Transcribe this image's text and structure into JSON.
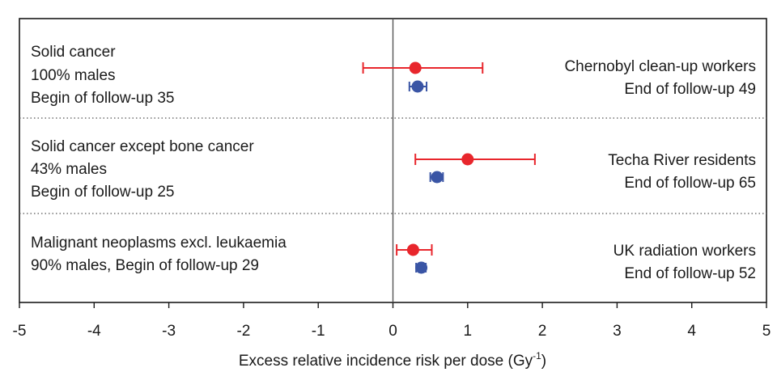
{
  "chart_data": {
    "type": "scatter",
    "xlabel_main": "Excess relative incidence risk per dose (Gy",
    "xlabel_sup": "-1",
    "xlabel_tail": ")",
    "xlim": [
      -5,
      5
    ],
    "xticks": [
      "-5",
      "-4",
      "-3",
      "-2",
      "-1",
      "0",
      "1",
      "2",
      "3",
      "4",
      "5"
    ],
    "grid": false,
    "colors": {
      "red": "#e8262c",
      "blue": "#3a55a5",
      "frame": "#1a1a1a",
      "divider": "#555555"
    },
    "panels": [
      {
        "left_lines": [
          "Solid cancer",
          "100% males",
          "Begin of follow-up 35"
        ],
        "right_lines": [
          "Chernobyl clean-up workers",
          "End of follow-up 49"
        ],
        "points": [
          {
            "color": "red",
            "x": 0.3,
            "lo": -0.4,
            "hi": 1.2
          },
          {
            "color": "blue",
            "x": 0.33,
            "lo": 0.22,
            "hi": 0.45
          }
        ]
      },
      {
        "left_lines": [
          "Solid cancer except bone cancer",
          "43% males",
          "Begin of follow-up 25"
        ],
        "right_lines": [
          "Techa River residents",
          "End of follow-up 65"
        ],
        "points": [
          {
            "color": "red",
            "x": 1.0,
            "lo": 0.3,
            "hi": 1.9
          },
          {
            "color": "blue",
            "x": 0.59,
            "lo": 0.5,
            "hi": 0.67
          }
        ]
      },
      {
        "left_lines": [
          "Malignant neoplasms excl. leukaemia",
          "90% males, Begin of follow-up 29"
        ],
        "right_lines": [
          "UK radiation workers",
          "End of follow-up 52"
        ],
        "points": [
          {
            "color": "red",
            "x": 0.27,
            "lo": 0.05,
            "hi": 0.52
          },
          {
            "color": "blue",
            "x": 0.38,
            "lo": 0.31,
            "hi": 0.44
          }
        ]
      }
    ]
  }
}
